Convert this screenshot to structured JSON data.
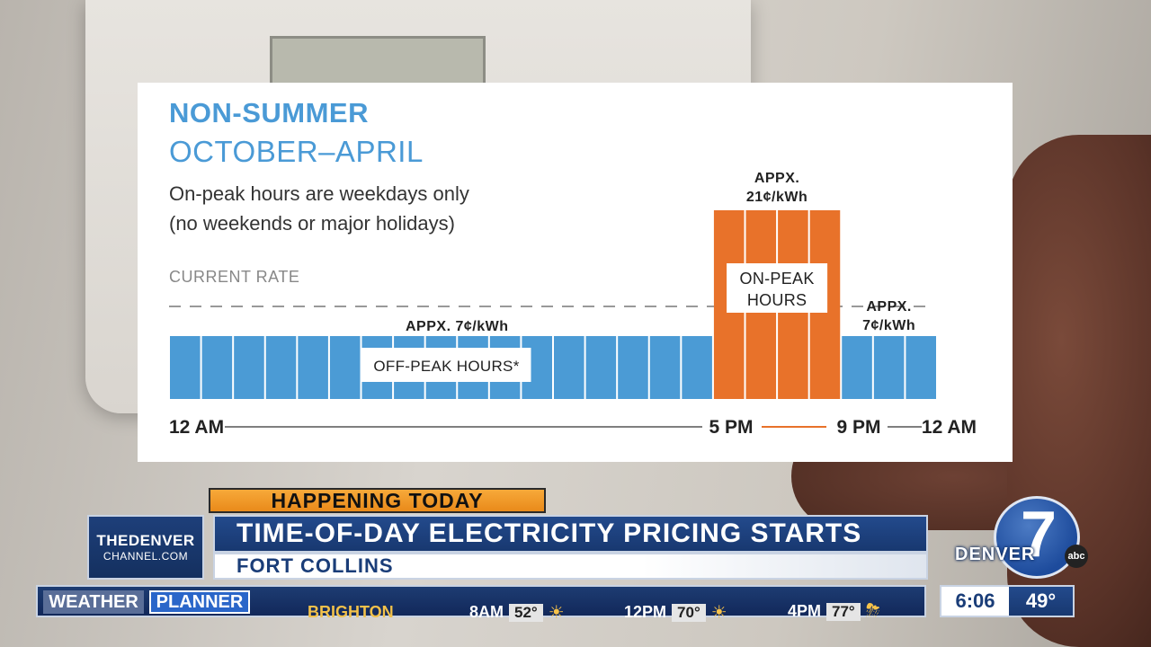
{
  "chart_data": {
    "type": "bar",
    "title": "NON-SUMMER",
    "subtitle": "OCTOBER–APRIL",
    "note_line1": "On-peak hours are weekdays only",
    "note_line2": "(no weekends or major holidays)",
    "reference_label": "CURRENT RATE",
    "x_ticks": [
      "12 AM",
      "5 PM",
      "9 PM",
      "12 AM"
    ],
    "hours": [
      0,
      1,
      2,
      3,
      4,
      5,
      6,
      7,
      8,
      9,
      10,
      11,
      12,
      13,
      14,
      15,
      16,
      17,
      18,
      19,
      20,
      21,
      22,
      23
    ],
    "rates_cents_per_kwh": [
      7,
      7,
      7,
      7,
      7,
      7,
      7,
      7,
      7,
      7,
      7,
      7,
      7,
      7,
      7,
      7,
      7,
      21,
      21,
      21,
      21,
      7,
      7,
      7
    ],
    "current_rate_cents_per_kwh": 10,
    "colors": {
      "off_peak": "#4b9bd5",
      "on_peak": "#e8722a",
      "title": "#4a9ad6"
    },
    "labels": {
      "off_peak_rate": "APPX. 7¢/kWh",
      "off_peak_box": "OFF-PEAK HOURS*",
      "on_peak_rate_line1": "APPX.",
      "on_peak_rate_line2": "21¢/kWh",
      "on_peak_box_line1": "ON-PEAK",
      "on_peak_box_line2": "HOURS",
      "evening_rate_line1": "APPX.",
      "evening_rate_line2": "7¢/kWh"
    }
  },
  "broadcast": {
    "kicker": "HAPPENING TODAY",
    "station_logo_line1": "THEDENVER",
    "station_logo_line2": "CHANNEL.COM",
    "headline": "TIME-OF-DAY ELECTRICITY PRICING STARTS",
    "location": "FORT COLLINS",
    "network_logo_number": "7",
    "network_logo_text": "DENVER",
    "network_logo_abc": "abc",
    "ticker": {
      "weather_label": "WEATHER",
      "planner_label": "PLANNER",
      "city": "BRIGHTON",
      "slots": [
        {
          "time": "8AM",
          "temp": "52°",
          "icon": "sun-icon"
        },
        {
          "time": "12PM",
          "temp": "70°",
          "icon": "sun-icon"
        },
        {
          "time": "4PM",
          "temp": "77°",
          "icon": "storm-cloud-icon"
        }
      ]
    },
    "clock_time": "6:06",
    "current_temp": "49°"
  }
}
